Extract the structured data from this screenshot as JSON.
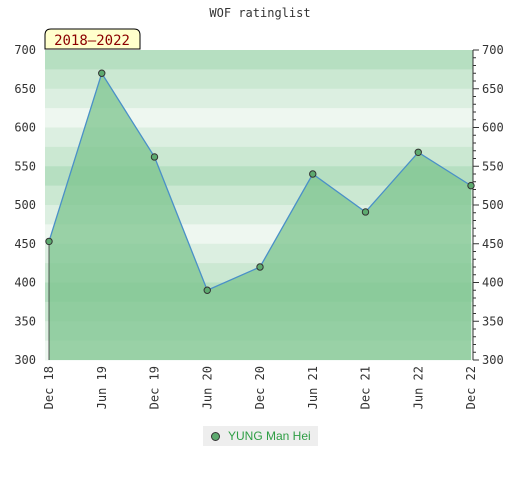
{
  "chart_data": {
    "type": "area",
    "title": "WOF ratinglist",
    "period_label": "2018–2022",
    "x": [
      "Dec 18",
      "Jun 19",
      "Dec 19",
      "Jun 20",
      "Dec 20",
      "Jun 21",
      "Dec 21",
      "Jun 22",
      "Dec 22"
    ],
    "series": [
      {
        "name": "YUNG Man Hei",
        "values": [
          453,
          670,
          562,
          390,
          420,
          540,
          491,
          568,
          525
        ]
      }
    ],
    "ylim": [
      300,
      700
    ],
    "yticks": [
      300,
      350,
      400,
      450,
      500,
      550,
      600,
      650,
      700
    ],
    "y_axis_both_sides": true,
    "grid": false,
    "legend_position": "bottom-center",
    "colors": {
      "line": "#4a90c8",
      "area": "#7cc48e",
      "marker": "#5daa6f"
    }
  }
}
